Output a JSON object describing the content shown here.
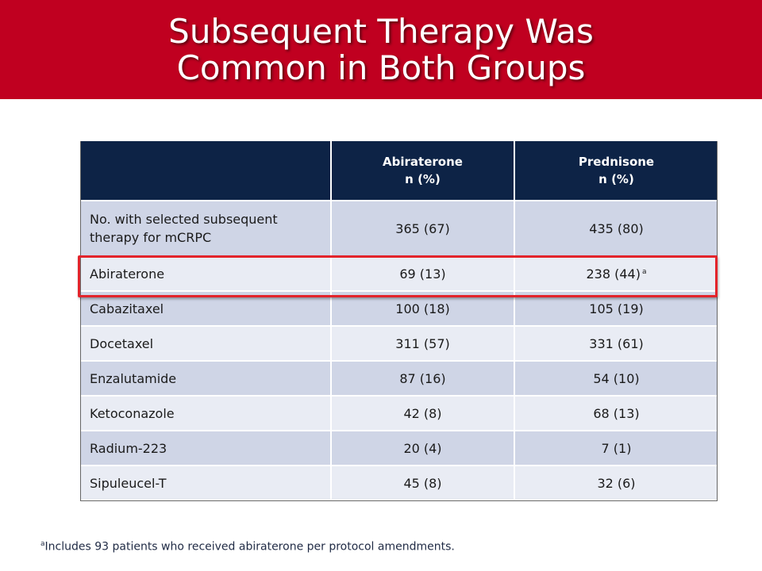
{
  "title": {
    "line1": "Subsequent Therapy Was",
    "line2": "Common in Both Groups"
  },
  "table": {
    "header": {
      "col1": "",
      "col2_line1": "Abiraterone",
      "col2_line2": "n (%)",
      "col3_line1": "Prednisone",
      "col3_line2": "n (%)"
    },
    "rows": [
      {
        "label": "No. with selected subsequent therapy for mCRPC",
        "abiraterone": "365 (67)",
        "prednisone": "435 (80)"
      },
      {
        "label": "Abiraterone",
        "abiraterone": "69 (13)",
        "prednisone": "238 (44)",
        "prednisone_note": "a"
      },
      {
        "label": "Cabazitaxel",
        "abiraterone": "100 (18)",
        "prednisone": "105 (19)"
      },
      {
        "label": "Docetaxel",
        "abiraterone": "311 (57)",
        "prednisone": "331 (61)"
      },
      {
        "label": "Enzalutamide",
        "abiraterone": "87 (16)",
        "prednisone": "54 (10)"
      },
      {
        "label": "Ketoconazole",
        "abiraterone": "42 (8)",
        "prednisone": "68 (13)"
      },
      {
        "label": "Radium-223",
        "abiraterone": "20 (4)",
        "prednisone": "7 (1)"
      },
      {
        "label": "Sipuleucel-T",
        "abiraterone": "45 (8)",
        "prednisone": "32 (6)"
      }
    ]
  },
  "footnote": {
    "marker": "a",
    "text": "Includes 93 patients who received abiraterone per protocol amendments."
  },
  "colors": {
    "title_bar": "#c00020",
    "header_bg": "#0d2346",
    "row_dark": "#cfd5e6",
    "row_light": "#e9ecf4",
    "highlight": "#e3242b"
  }
}
